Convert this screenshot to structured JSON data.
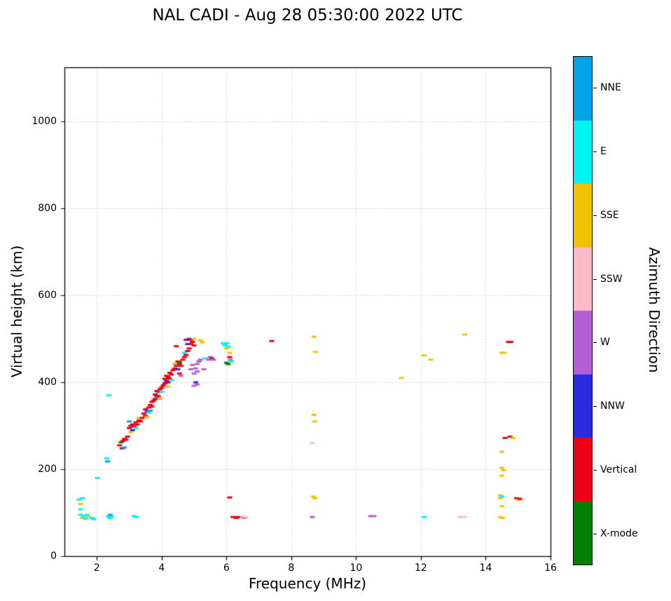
{
  "chart_data": {
    "type": "scatter",
    "title": "NAL CADI - Aug 28 05:30:00 2022 UTC",
    "xlabel": "Frequency (MHz)",
    "ylabel": "Virtual height (km)",
    "xlim": [
      1,
      16
    ],
    "ylim": [
      0,
      1125
    ],
    "xticks": [
      2,
      4,
      6,
      8,
      10,
      12,
      14,
      16
    ],
    "yticks": [
      0,
      200,
      400,
      600,
      800,
      1000
    ],
    "grid": true,
    "marker": "horizontal-dash",
    "colorbar": {
      "label": "Azimuth Direction",
      "categories": [
        {
          "name": "NNE",
          "color": "#00A2E8"
        },
        {
          "name": "E",
          "color": "#00F2F2"
        },
        {
          "name": "SSE",
          "color": "#F2C100"
        },
        {
          "name": "SSW",
          "color": "#FFB9C8"
        },
        {
          "name": "W",
          "color": "#B45FD6"
        },
        {
          "name": "NNW",
          "color": "#2A2AE0"
        },
        {
          "name": "Vertical",
          "color": "#EC0016"
        },
        {
          "name": "X-mode",
          "color": "#008000"
        }
      ]
    },
    "points_format": [
      "freq_MHz",
      "height_km",
      "direction"
    ],
    "points": [
      [
        1.45,
        130,
        "E"
      ],
      [
        1.55,
        133,
        "E"
      ],
      [
        1.5,
        120,
        "SSE"
      ],
      [
        1.5,
        108,
        "E"
      ],
      [
        1.5,
        95,
        "E"
      ],
      [
        1.55,
        88,
        "SSE"
      ],
      [
        1.6,
        92,
        "E"
      ],
      [
        1.65,
        86,
        "E"
      ],
      [
        1.7,
        95,
        "E"
      ],
      [
        1.75,
        90,
        "SSE"
      ],
      [
        1.85,
        88,
        "E"
      ],
      [
        1.9,
        85,
        "E"
      ],
      [
        2.02,
        180,
        "E"
      ],
      [
        2.3,
        225,
        "E"
      ],
      [
        2.33,
        218,
        "NNE"
      ],
      [
        2.35,
        92,
        "E"
      ],
      [
        2.4,
        88,
        "E"
      ],
      [
        2.42,
        95,
        "NNE"
      ],
      [
        2.45,
        90,
        "E"
      ],
      [
        2.37,
        370,
        "E"
      ],
      [
        3.15,
        92,
        "E"
      ],
      [
        3.22,
        90,
        "E"
      ],
      [
        2.7,
        255,
        "Vertical"
      ],
      [
        2.75,
        262,
        "X-mode"
      ],
      [
        2.78,
        248,
        "Vertical"
      ],
      [
        2.8,
        265,
        "Vertical"
      ],
      [
        2.85,
        250,
        "NNE"
      ],
      [
        2.85,
        270,
        "Vertical"
      ],
      [
        2.9,
        268,
        "Vertical"
      ],
      [
        2.95,
        275,
        "Vertical"
      ],
      [
        3.0,
        295,
        "Vertical"
      ],
      [
        3.0,
        310,
        "NNE"
      ],
      [
        3.05,
        285,
        "SSE"
      ],
      [
        3.05,
        300,
        "Vertical"
      ],
      [
        3.1,
        303,
        "Vertical"
      ],
      [
        3.1,
        290,
        "NNW"
      ],
      [
        3.15,
        298,
        "Vertical"
      ],
      [
        3.2,
        308,
        "Vertical"
      ],
      [
        3.2,
        295,
        "E"
      ],
      [
        3.25,
        303,
        "Vertical"
      ],
      [
        3.3,
        312,
        "Vertical"
      ],
      [
        3.3,
        318,
        "SSE"
      ],
      [
        3.35,
        310,
        "Vertical"
      ],
      [
        3.4,
        318,
        "Vertical"
      ],
      [
        3.45,
        328,
        "Vertical"
      ],
      [
        3.5,
        323,
        "Vertical"
      ],
      [
        3.5,
        338,
        "Vertical"
      ],
      [
        3.55,
        333,
        "NNW"
      ],
      [
        3.55,
        320,
        "SSE"
      ],
      [
        3.6,
        342,
        "Vertical"
      ],
      [
        3.6,
        330,
        "E"
      ],
      [
        3.65,
        348,
        "Vertical"
      ],
      [
        3.65,
        335,
        "NNE"
      ],
      [
        3.7,
        344,
        "Vertical"
      ],
      [
        3.7,
        355,
        "Vertical"
      ],
      [
        3.75,
        358,
        "Vertical"
      ],
      [
        3.8,
        362,
        "Vertical"
      ],
      [
        3.8,
        372,
        "Vertical"
      ],
      [
        3.85,
        368,
        "NNW"
      ],
      [
        3.85,
        380,
        "Vertical"
      ],
      [
        3.9,
        378,
        "Vertical"
      ],
      [
        3.9,
        368,
        "Vertical"
      ],
      [
        3.95,
        384,
        "Vertical"
      ],
      [
        3.95,
        362,
        "SSE"
      ],
      [
        4.0,
        388,
        "Vertical"
      ],
      [
        4.0,
        378,
        "E"
      ],
      [
        4.05,
        393,
        "Vertical"
      ],
      [
        4.1,
        398,
        "Vertical"
      ],
      [
        4.1,
        408,
        "Vertical"
      ],
      [
        4.15,
        403,
        "NNW"
      ],
      [
        4.15,
        415,
        "Vertical"
      ],
      [
        4.2,
        412,
        "Vertical"
      ],
      [
        4.2,
        400,
        "Vertical"
      ],
      [
        4.2,
        390,
        "SSE"
      ],
      [
        4.25,
        408,
        "Vertical"
      ],
      [
        4.25,
        422,
        "Vertical"
      ],
      [
        4.3,
        418,
        "Vertical"
      ],
      [
        4.3,
        405,
        "E"
      ],
      [
        4.35,
        428,
        "Vertical"
      ],
      [
        4.4,
        432,
        "Vertical"
      ],
      [
        4.4,
        443,
        "SSE"
      ],
      [
        4.45,
        438,
        "Vertical"
      ],
      [
        4.45,
        483,
        "Vertical"
      ],
      [
        4.5,
        448,
        "Vertical"
      ],
      [
        4.5,
        430,
        "NNW"
      ],
      [
        4.55,
        443,
        "Vertical"
      ],
      [
        4.55,
        420,
        "Vertical"
      ],
      [
        4.55,
        447,
        "X-mode"
      ],
      [
        4.6,
        438,
        "Vertical"
      ],
      [
        4.6,
        415,
        "W"
      ],
      [
        4.65,
        452,
        "Vertical"
      ],
      [
        4.7,
        458,
        "Vertical"
      ],
      [
        4.7,
        468,
        "E"
      ],
      [
        4.75,
        463,
        "Vertical"
      ],
      [
        4.75,
        498,
        "Vertical"
      ],
      [
        4.8,
        472,
        "Vertical"
      ],
      [
        4.8,
        488,
        "NNW"
      ],
      [
        4.85,
        478,
        "Vertical"
      ],
      [
        4.85,
        500,
        "NNW"
      ],
      [
        4.9,
        488,
        "Vertical"
      ],
      [
        4.9,
        498,
        "Vertical"
      ],
      [
        4.95,
        493,
        "Vertical"
      ],
      [
        5.0,
        500,
        "SSE"
      ],
      [
        5.0,
        485,
        "Vertical"
      ],
      [
        4.9,
        430,
        "W"
      ],
      [
        4.95,
        440,
        "W"
      ],
      [
        5.0,
        420,
        "W"
      ],
      [
        5.05,
        432,
        "W"
      ],
      [
        5.05,
        400,
        "NNW"
      ],
      [
        5.0,
        392,
        "W"
      ],
      [
        5.1,
        442,
        "W"
      ],
      [
        5.1,
        425,
        "W"
      ],
      [
        5.1,
        395,
        "W"
      ],
      [
        5.15,
        448,
        "W"
      ],
      [
        5.2,
        452,
        "W"
      ],
      [
        5.2,
        497,
        "SSE"
      ],
      [
        5.25,
        492,
        "SSE"
      ],
      [
        5.3,
        430,
        "W"
      ],
      [
        5.35,
        455,
        "E"
      ],
      [
        5.45,
        452,
        "W"
      ],
      [
        5.5,
        458,
        "W"
      ],
      [
        5.55,
        455,
        "Vertical"
      ],
      [
        5.6,
        452,
        "W"
      ],
      [
        5.9,
        490,
        "E"
      ],
      [
        5.95,
        485,
        "E"
      ],
      [
        6.0,
        490,
        "E"
      ],
      [
        6.0,
        478,
        "SSE"
      ],
      [
        6.05,
        482,
        "E"
      ],
      [
        6.0,
        445,
        "X-mode"
      ],
      [
        6.05,
        442,
        "X-mode"
      ],
      [
        6.1,
        468,
        "SSE"
      ],
      [
        6.1,
        458,
        "Vertical"
      ],
      [
        6.12,
        452,
        "W"
      ],
      [
        6.15,
        448,
        "E"
      ],
      [
        6.1,
        135,
        "Vertical"
      ],
      [
        6.2,
        90,
        "Vertical"
      ],
      [
        6.3,
        88,
        "Vertical"
      ],
      [
        6.35,
        90,
        "Vertical"
      ],
      [
        6.5,
        90,
        "SSW"
      ],
      [
        6.55,
        88,
        "W"
      ],
      [
        6.6,
        90,
        "SSW"
      ],
      [
        7.4,
        495,
        "Vertical"
      ],
      [
        8.7,
        505,
        "SSE"
      ],
      [
        8.75,
        470,
        "SSE"
      ],
      [
        8.7,
        325,
        "SSE"
      ],
      [
        8.72,
        310,
        "SSE"
      ],
      [
        8.65,
        260,
        "SSW"
      ],
      [
        8.68,
        137,
        "SSE"
      ],
      [
        8.73,
        133,
        "SSE"
      ],
      [
        8.65,
        90,
        "W"
      ],
      [
        10.45,
        92,
        "W"
      ],
      [
        10.55,
        92,
        "W"
      ],
      [
        11.4,
        410,
        "SSE"
      ],
      [
        12.1,
        462,
        "SSE"
      ],
      [
        12.3,
        452,
        "SSE"
      ],
      [
        12.1,
        90,
        "E"
      ],
      [
        13.35,
        510,
        "SSE"
      ],
      [
        13.2,
        90,
        "SSW"
      ],
      [
        13.35,
        90,
        "SSW"
      ],
      [
        14.7,
        493,
        "Vertical"
      ],
      [
        14.78,
        493,
        "Vertical"
      ],
      [
        14.5,
        468,
        "SSE"
      ],
      [
        14.57,
        468,
        "SSE"
      ],
      [
        14.6,
        272,
        "Vertical"
      ],
      [
        14.75,
        275,
        "Vertical"
      ],
      [
        14.85,
        272,
        "SSE"
      ],
      [
        14.5,
        240,
        "SSE"
      ],
      [
        14.5,
        203,
        "SSE"
      ],
      [
        14.55,
        198,
        "SSE"
      ],
      [
        14.5,
        185,
        "SSE"
      ],
      [
        14.45,
        140,
        "SSE"
      ],
      [
        14.5,
        137,
        "E"
      ],
      [
        14.45,
        133,
        "SSE"
      ],
      [
        14.95,
        133,
        "Vertical"
      ],
      [
        15.0,
        130,
        "SSE"
      ],
      [
        15.05,
        132,
        "Vertical"
      ],
      [
        14.5,
        115,
        "SSE"
      ],
      [
        14.45,
        90,
        "SSE"
      ],
      [
        14.52,
        88,
        "SSE"
      ]
    ]
  }
}
